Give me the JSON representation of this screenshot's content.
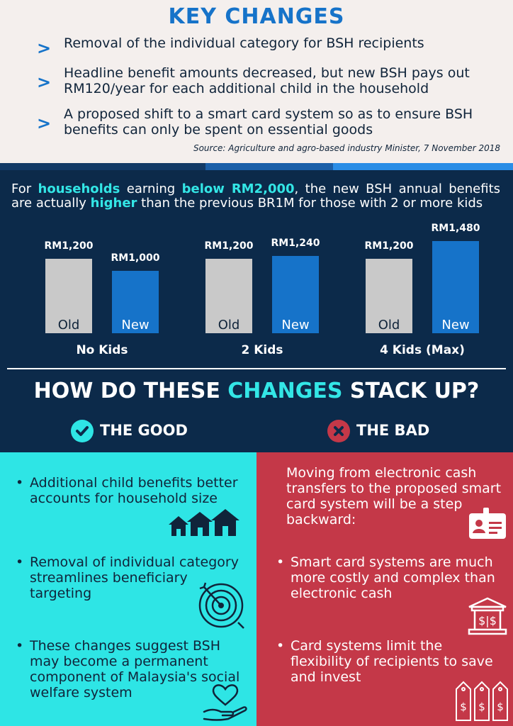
{
  "key_changes": {
    "title": "KEY CHANGES",
    "bullets": [
      "Removal of the individual category for BSH recipients",
      "Headline benefit amounts decreased, but new BSH pays out RM120/year for each additional child in the household",
      "A proposed shift to a smart card system so as to ensure BSH benefits can only be spent on essential goods"
    ],
    "bullet_marker": ">",
    "source": "Source: Agriculture and agro-based industry Minister, 7 November 2018"
  },
  "intro": {
    "t1": "For ",
    "t2": "households",
    "t3": " earning ",
    "t4": "below RM2,000",
    "t5": ", the new BSH annual benefits are actually ",
    "t6": "higher",
    "t7": " than the previous BR1M for those with 2 or more kids"
  },
  "chart_data": {
    "type": "bar",
    "categories": [
      "No Kids",
      "2 Kids",
      "4 Kids (Max)"
    ],
    "series": [
      {
        "name": "Old",
        "values": [
          1200,
          1200,
          1200
        ]
      },
      {
        "name": "New",
        "values": [
          1000,
          1240,
          1480
        ]
      }
    ],
    "value_labels": {
      "old": [
        "RM1,200",
        "RM1,200",
        "RM1,200"
      ],
      "new": [
        "RM1,000",
        "RM1,240",
        "RM1,480"
      ]
    },
    "bar_labels": {
      "old": "Old",
      "new": "New"
    },
    "ylim": [
      0,
      1480
    ]
  },
  "stack_up": {
    "t1": "HOW DO THESE ",
    "t2": "CHANGES",
    "t3": " STACK UP?"
  },
  "good": {
    "heading": "THE GOOD",
    "items": [
      "Additional child benefits better accounts for household size",
      "Removal of individual category streamlines beneficiary targeting",
      "These changes suggest BSH may become a permanent component of Malaysia's social welfare system"
    ]
  },
  "bad": {
    "heading": "THE BAD",
    "intro": "Moving from electronic cash transfers to the proposed smart card system will be a step backward:",
    "items": [
      "Smart card systems are much more costly and complex than electronic cash",
      "Card systems limit the flexibility of recipients to save and invest"
    ]
  },
  "icons": {
    "good": "check-circle-icon",
    "bad": "x-circle-icon",
    "houses": "houses-icon",
    "target": "target-icon",
    "heart_hand": "heart-hand-icon",
    "id_card": "id-card-icon",
    "bank": "bank-icon",
    "tags": "price-tags-icon"
  },
  "colors": {
    "primary_blue": "#1673c9",
    "cyan": "#2ee5e5",
    "navy": "#0c2a4a",
    "red": "#c43848"
  }
}
